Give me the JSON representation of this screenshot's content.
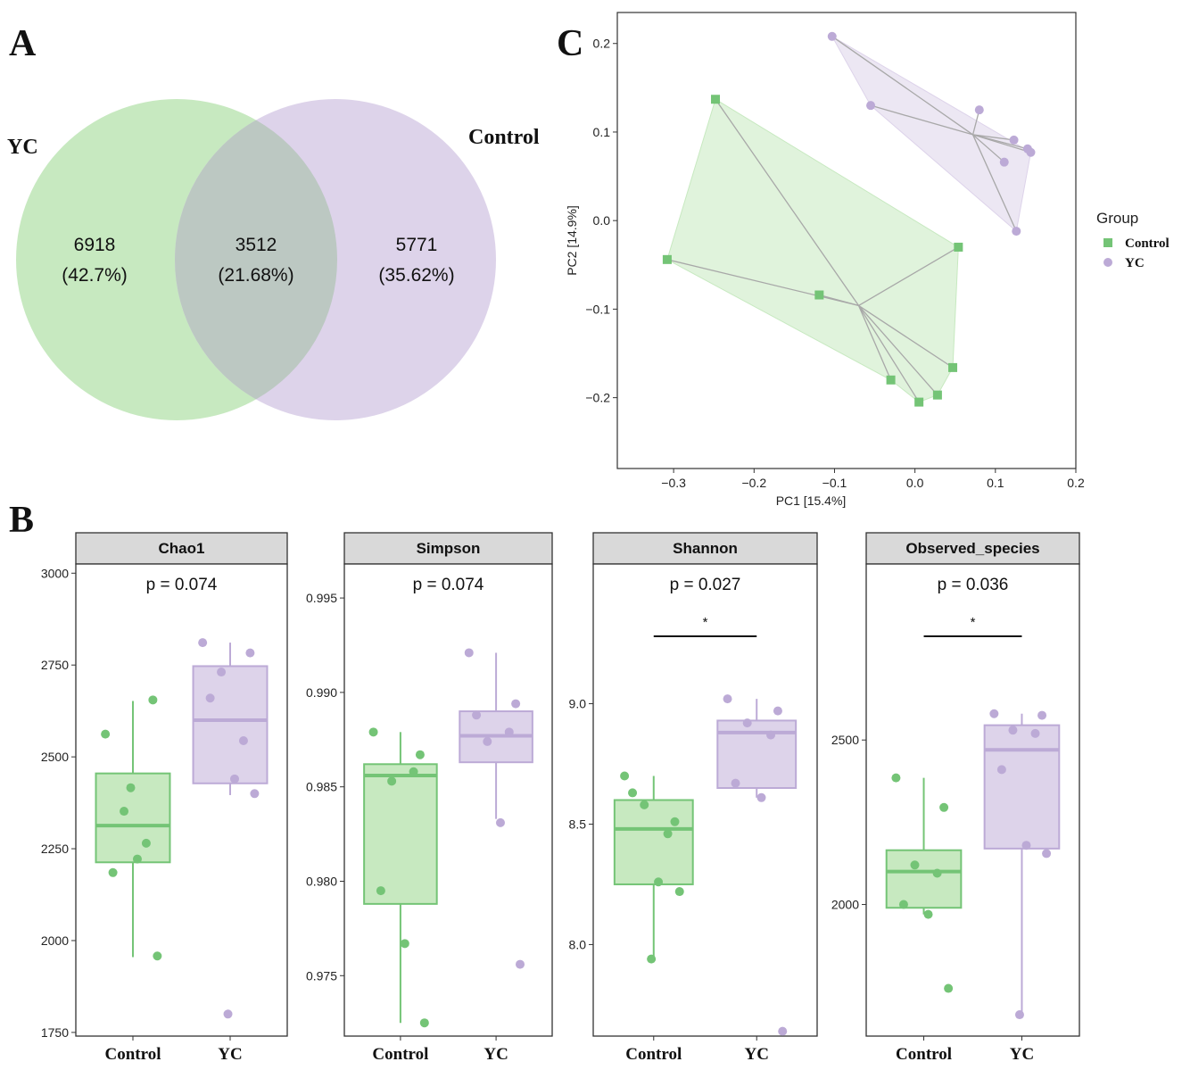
{
  "colors": {
    "control": "#74c476",
    "control_fill": "#c7e9c0",
    "yc": "#bcaad6",
    "yc_fill": "#ddd3ea",
    "overlap": "#bcc8c2",
    "frame": "#333333",
    "strip": "#d9d9d9"
  },
  "panels": {
    "A": "A",
    "B": "B",
    "C": "C"
  },
  "chart_data": [
    {
      "type": "venn",
      "panel": "A",
      "sets": [
        {
          "name": "YC",
          "label": "YC",
          "count": 6918,
          "percent": "(42.7%)"
        },
        {
          "name": "Control",
          "label": "Control",
          "count": 5771,
          "percent": "(35.62%)"
        }
      ],
      "intersection": {
        "count": 3512,
        "percent": "(21.68%)"
      }
    },
    {
      "type": "scatter",
      "panel": "C",
      "xlabel": "PC1 [15.4%]",
      "ylabel": "PC2 [14.9%]",
      "xlim": [
        -0.37,
        0.2
      ],
      "ylim": [
        -0.28,
        0.235
      ],
      "xticks": [
        -0.3,
        -0.2,
        -0.1,
        0.0,
        0.1,
        0.2
      ],
      "xtick_labels": [
        "−0.3",
        "−0.2",
        "−0.1",
        "0.0",
        "0.1",
        "0.2"
      ],
      "yticks": [
        -0.2,
        -0.1,
        0.0,
        0.1,
        0.2
      ],
      "ytick_labels": [
        "−0.2",
        "−0.1",
        "0.0",
        "0.1",
        "0.2"
      ],
      "legend": {
        "title": "Group",
        "position": "right",
        "entries": [
          "Control",
          "YC"
        ]
      },
      "series": [
        {
          "name": "Control",
          "marker": "square",
          "centroid": [
            -0.07,
            -0.096
          ],
          "hull": [
            [
              -0.248,
              0.137
            ],
            [
              0.054,
              -0.03
            ],
            [
              0.047,
              -0.166
            ],
            [
              0.028,
              -0.197
            ],
            [
              0.005,
              -0.205
            ],
            [
              -0.03,
              -0.18
            ],
            [
              -0.308,
              -0.044
            ]
          ],
          "points": [
            [
              -0.248,
              0.137
            ],
            [
              -0.308,
              -0.044
            ],
            [
              -0.119,
              -0.084
            ],
            [
              0.054,
              -0.03
            ],
            [
              0.047,
              -0.166
            ],
            [
              -0.03,
              -0.18
            ],
            [
              0.005,
              -0.205
            ],
            [
              0.028,
              -0.197
            ]
          ]
        },
        {
          "name": "YC",
          "marker": "circle",
          "centroid": [
            0.072,
            0.097
          ],
          "hull": [
            [
              -0.103,
              0.208
            ],
            [
              0.144,
              0.077
            ],
            [
              0.126,
              -0.012
            ],
            [
              -0.055,
              0.13
            ]
          ],
          "points": [
            [
              -0.103,
              0.208
            ],
            [
              -0.055,
              0.13
            ],
            [
              0.08,
              0.125
            ],
            [
              0.123,
              0.091
            ],
            [
              0.111,
              0.066
            ],
            [
              0.14,
              0.081
            ],
            [
              0.144,
              0.077
            ],
            [
              0.126,
              -0.012
            ]
          ]
        }
      ]
    },
    {
      "type": "box",
      "panel": "B",
      "title": "Chao1",
      "pvalue": "p = 0.074",
      "significance": "",
      "categories": [
        "Control",
        "YC"
      ],
      "ylim": [
        1740,
        3025
      ],
      "yticks": [
        1750,
        2000,
        2250,
        2500,
        2750,
        3000
      ],
      "ytick_labels": [
        "1750",
        "2000",
        "2250",
        "2500",
        "2750",
        "3000"
      ],
      "boxes": [
        {
          "group": "Control",
          "min": 1955,
          "q1": 2213,
          "median": 2313,
          "q3": 2455,
          "max": 2652
        },
        {
          "group": "YC",
          "min": 2396,
          "q1": 2428,
          "median": 2600,
          "q3": 2747,
          "max": 2811
        }
      ],
      "points": {
        "Control": [
          2562,
          2655,
          2352,
          2265,
          2185,
          2222,
          1958,
          2416
        ],
        "YC": [
          2811,
          2783,
          2731,
          2544,
          2660,
          2440,
          2400,
          1800
        ]
      }
    },
    {
      "type": "box",
      "panel": "B",
      "title": "Simpson",
      "pvalue": "p = 0.074",
      "significance": "",
      "categories": [
        "Control",
        "YC"
      ],
      "ylim": [
        0.9718,
        0.9968
      ],
      "yticks": [
        0.975,
        0.98,
        0.985,
        0.99,
        0.995
      ],
      "ytick_labels": [
        "0.975",
        "0.980",
        "0.985",
        "0.990",
        "0.995"
      ],
      "boxes": [
        {
          "group": "Control",
          "min": 0.9725,
          "q1": 0.9788,
          "median": 0.9856,
          "q3": 0.9862,
          "max": 0.9879
        },
        {
          "group": "YC",
          "min": 0.9833,
          "q1": 0.9863,
          "median": 0.9877,
          "q3": 0.989,
          "max": 0.9921
        }
      ],
      "points": {
        "Control": [
          0.9879,
          0.9867,
          0.9853,
          0.9858,
          0.9795,
          0.9767,
          0.9725
        ],
        "YC": [
          0.9921,
          0.9894,
          0.9874,
          0.9879,
          0.9888,
          0.9831,
          0.9756
        ]
      }
    },
    {
      "type": "box",
      "panel": "B",
      "title": "Shannon",
      "pvalue": "p = 0.027",
      "significance": "*",
      "categories": [
        "Control",
        "YC"
      ],
      "ylim": [
        7.62,
        9.58
      ],
      "yticks": [
        8.0,
        8.5,
        9.0
      ],
      "ytick_labels": [
        "8.0",
        "8.5",
        "9.0"
      ],
      "boxes": [
        {
          "group": "Control",
          "min": 7.94,
          "q1": 8.25,
          "median": 8.48,
          "q3": 8.6,
          "max": 8.7
        },
        {
          "group": "YC",
          "min": 8.61,
          "q1": 8.65,
          "median": 8.88,
          "q3": 8.93,
          "max": 9.02
        }
      ],
      "points": {
        "Control": [
          8.7,
          8.51,
          8.58,
          8.46,
          8.63,
          8.26,
          8.22,
          7.94
        ],
        "YC": [
          9.02,
          8.97,
          8.92,
          8.87,
          8.67,
          8.61,
          7.64
        ]
      }
    },
    {
      "type": "box",
      "panel": "B",
      "title": "Observed_species",
      "pvalue": "p = 0.036",
      "significance": "*",
      "categories": [
        "Control",
        "YC"
      ],
      "ylim": [
        1600,
        3035
      ],
      "yticks": [
        2000,
        2500
      ],
      "ytick_labels": [
        "2000",
        "2500"
      ],
      "boxes": [
        {
          "group": "Control",
          "min": 1970,
          "q1": 1990,
          "median": 2100,
          "q3": 2165,
          "max": 2385
        },
        {
          "group": "YC",
          "min": 1670,
          "q1": 2170,
          "median": 2470,
          "q3": 2545,
          "max": 2580
        }
      ],
      "points": {
        "Control": [
          2385,
          2295,
          2120,
          2095,
          2000,
          1970,
          1745
        ],
        "YC": [
          2580,
          2575,
          2530,
          2520,
          2410,
          2180,
          2155,
          1665
        ]
      }
    }
  ]
}
